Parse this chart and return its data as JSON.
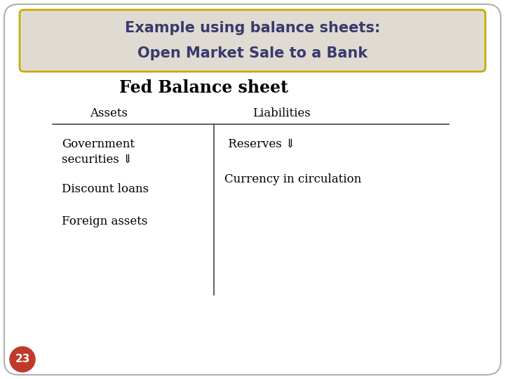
{
  "title_line1": "Example using balance sheets:",
  "title_line2": "Open Market Sale to a Bank",
  "subtitle": "Fed Balance sheet",
  "header_assets": "Assets",
  "header_liabilities": "Liabilities",
  "assets_line1": "Government",
  "assets_line2": "securities ⇓",
  "asset2": "Discount loans",
  "asset3": "Foreign assets",
  "liab1": " Reserves ⇓",
  "liab2": "Currency in circulation",
  "page_number": "23",
  "bg_color": "#ffffff",
  "title_bg": "#e0dbd2",
  "title_border": "#c8aa00",
  "title_text_color": "#3a3a6e",
  "subtitle_color": "#000000",
  "body_text_color": "#000000",
  "page_circle_color": "#c0392b",
  "outer_border_color": "#b0b0b0",
  "line_color": "#444444"
}
